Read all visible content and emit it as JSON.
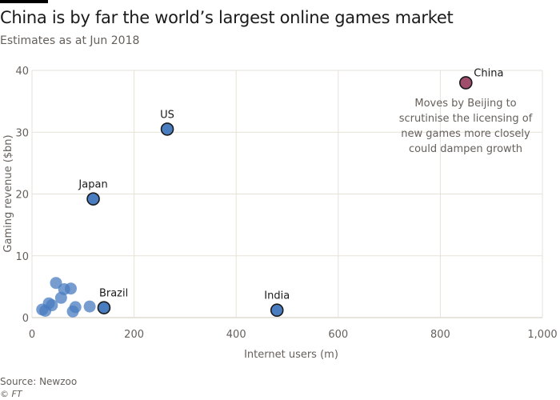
{
  "header": {
    "title": "China is by far the world’s largest online games market",
    "subtitle": "Estimates as at Jun 2018"
  },
  "footer": {
    "source": "Source: Newzoo",
    "copyright": "© FT"
  },
  "colors": {
    "point": "#4a7cc0",
    "highlight": "#a14d6c",
    "grid": "#e6e2d8",
    "text": "#33302e"
  },
  "chart_data": {
    "type": "scatter",
    "title": "China is by far the world’s largest online games market",
    "subtitle": "Estimates as at Jun 2018",
    "xlabel": "Internet users (m)",
    "ylabel": "Gaming revenue ($bn)",
    "xlim": [
      0,
      1000
    ],
    "ylim": [
      0,
      40
    ],
    "xticks": [
      0,
      200,
      400,
      600,
      800,
      1000
    ],
    "xtick_labels": [
      "0",
      "200",
      "400",
      "600",
      "800",
      "1,000"
    ],
    "yticks": [
      0,
      10,
      20,
      30,
      40
    ],
    "ytick_labels": [
      "0",
      "10",
      "20",
      "30",
      "40"
    ],
    "grid": true,
    "points": [
      {
        "label": "China",
        "x": 850,
        "y": 38,
        "highlight": true
      },
      {
        "label": "US",
        "x": 265,
        "y": 30.5
      },
      {
        "label": "Japan",
        "x": 120,
        "y": 19.2
      },
      {
        "label": "India",
        "x": 480,
        "y": 1.2
      },
      {
        "label": "Brazil",
        "x": 141,
        "y": 1.6
      },
      {
        "label": "",
        "x": 47,
        "y": 5.6
      },
      {
        "label": "",
        "x": 76,
        "y": 4.7
      },
      {
        "label": "",
        "x": 63,
        "y": 4.6
      },
      {
        "label": "",
        "x": 57,
        "y": 3.2
      },
      {
        "label": "",
        "x": 33,
        "y": 2.3
      },
      {
        "label": "",
        "x": 39,
        "y": 2.0
      },
      {
        "label": "",
        "x": 85,
        "y": 1.7
      },
      {
        "label": "",
        "x": 113,
        "y": 1.8
      },
      {
        "label": "",
        "x": 20,
        "y": 1.3
      },
      {
        "label": "",
        "x": 26,
        "y": 1.1
      },
      {
        "label": "",
        "x": 80,
        "y": 1.0
      }
    ],
    "annotations": [
      {
        "text": "Moves by Beijing to scrutinise the licensing of new games more closely could dampen growth",
        "lines": [
          "Moves by Beijing to",
          "scrutinise the licensing of",
          "new games more closely",
          "could dampen growth"
        ]
      }
    ]
  }
}
